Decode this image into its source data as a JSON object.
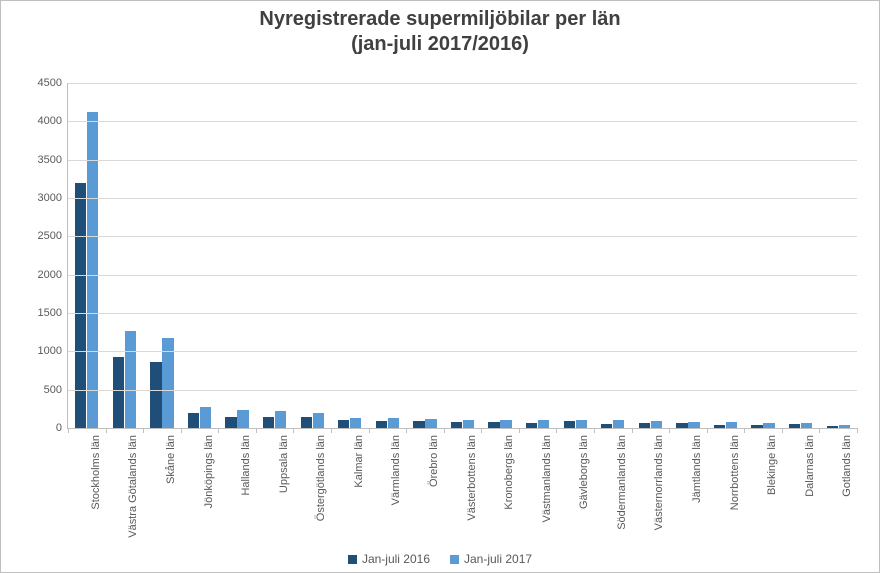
{
  "chart": {
    "type": "bar",
    "title_line1": "Nyregistrerade supermiljöbilar per län",
    "title_line2": "(jan-juli 2017/2016)",
    "title_fontsize": 20,
    "title_color": "#404040",
    "background_color": "#ffffff",
    "grid_color": "#d9d9d9",
    "axis_color": "#bfbfbf",
    "tick_label_fontsize": 11,
    "tick_label_color": "#595959",
    "categories": [
      "Stockholms län",
      "Västra Götalands län",
      "Skåne län",
      "Jönköpings län",
      "Hallands län",
      "Uppsala län",
      "Östergötlands län",
      "Kalmar län",
      "Värmlands län",
      "Örebro län",
      "Västerbottens län",
      "Kronobergs län",
      "Västmanlands län",
      "Gävleborgs län",
      "Södermanlands län",
      "Västernorrlands län",
      "Jämtlands län",
      "Norrbottens län",
      "Blekinge län",
      "Dalarnas län",
      "Gotlands län"
    ],
    "series": [
      {
        "name": "Jan-juli 2016",
        "color": "#1f4e79",
        "values": [
          3190,
          930,
          860,
          200,
          140,
          140,
          140,
          100,
          90,
          90,
          80,
          80,
          70,
          90,
          50,
          70,
          60,
          40,
          40,
          50,
          30
        ]
      },
      {
        "name": "Jan-juli 2017",
        "color": "#5b9bd5",
        "values": [
          4120,
          1260,
          1180,
          280,
          230,
          220,
          200,
          130,
          130,
          120,
          110,
          110,
          110,
          100,
          100,
          90,
          80,
          80,
          70,
          70,
          40
        ]
      }
    ],
    "ylim": [
      0,
      4500
    ],
    "ytick_step": 500,
    "bar_width_ratio": 0.3,
    "bar_gap_ratio": 0.02
  },
  "legend": {
    "items": [
      {
        "label": "Jan-juli 2016",
        "color": "#1f4e79"
      },
      {
        "label": "Jan-juli 2017",
        "color": "#5b9bd5"
      }
    ]
  }
}
